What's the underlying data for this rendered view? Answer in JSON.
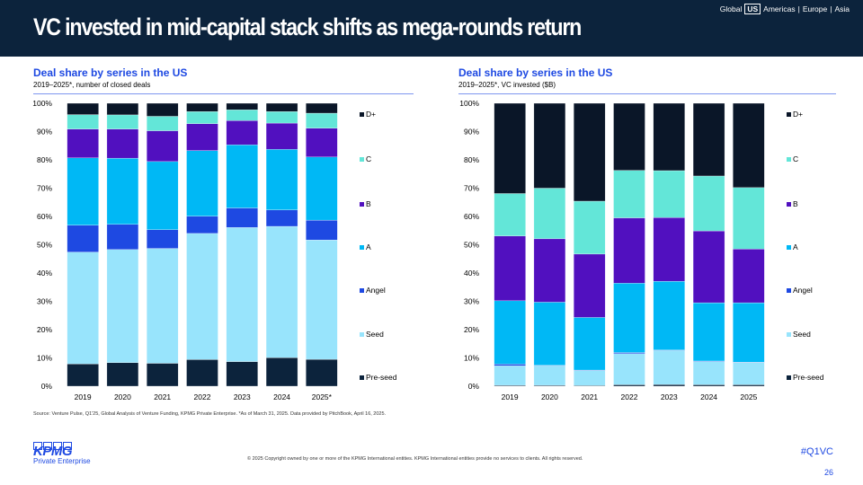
{
  "header": {
    "title": "VC invested in mid-capital stack shifts as mega-rounds return",
    "regions": [
      "Global",
      "US",
      "Americas",
      "Europe",
      "Asia"
    ],
    "selected_region": "US"
  },
  "colors": {
    "Pre-seed": "#0c233c",
    "Seed": "#98e4fc",
    "Angel": "#1e49e2",
    "A": "#00b8f5",
    "B": "#5110bf",
    "C": "#63e6d8",
    "D+": "#0a1628"
  },
  "chart_data": [
    {
      "type": "bar",
      "stacked": true,
      "title": "Deal share by series in the US",
      "subtitle": "2019–2025*, number of closed deals",
      "categories": [
        "2019",
        "2020",
        "2021",
        "2022",
        "2023",
        "2024",
        "2025*"
      ],
      "ylim": [
        0,
        100
      ],
      "yticks": [
        "0%",
        "10%",
        "20%",
        "30%",
        "40%",
        "50%",
        "60%",
        "70%",
        "80%",
        "90%",
        "100%"
      ],
      "legend": "right",
      "series": [
        {
          "name": "Pre-seed",
          "values": [
            7.9,
            8.3,
            8.1,
            9.4,
            8.7,
            10.1,
            9.5
          ]
        },
        {
          "name": "Seed",
          "values": [
            39.5,
            40.0,
            40.6,
            44.6,
            47.4,
            46.4,
            42.2
          ]
        },
        {
          "name": "Angel",
          "values": [
            9.5,
            8.9,
            6.6,
            6.1,
            6.9,
            5.8,
            7.0
          ]
        },
        {
          "name": "A",
          "values": [
            23.8,
            23.4,
            24.1,
            23.2,
            22.3,
            21.4,
            22.3
          ]
        },
        {
          "name": "B",
          "values": [
            10.2,
            10.3,
            10.9,
            9.5,
            8.6,
            9.3,
            10.2
          ]
        },
        {
          "name": "C",
          "values": [
            5.1,
            5.0,
            5.1,
            4.3,
            3.8,
            4.1,
            5.3
          ]
        },
        {
          "name": "D+",
          "values": [
            4.0,
            4.1,
            4.6,
            2.9,
            2.3,
            2.9,
            3.5
          ]
        }
      ]
    },
    {
      "type": "bar",
      "stacked": true,
      "title": "Deal share by series in the US",
      "subtitle": "2019–2025*, VC invested ($B)",
      "categories": [
        "2019",
        "2020",
        "2021",
        "2022",
        "2023",
        "2024",
        "2025"
      ],
      "ylim": [
        0,
        100
      ],
      "yticks": [
        "0%",
        "10%",
        "20%",
        "30%",
        "40%",
        "50%",
        "60%",
        "70%",
        "80%",
        "90%",
        "100%"
      ],
      "legend": "right",
      "series": [
        {
          "name": "Pre-seed",
          "values": [
            0.3,
            0.3,
            0.2,
            0.5,
            0.6,
            0.5,
            0.5
          ]
        },
        {
          "name": "Seed",
          "values": [
            6.9,
            7.0,
            5.4,
            11.0,
            12.0,
            8.3,
            7.9
          ]
        },
        {
          "name": "Angel",
          "values": [
            0.6,
            0.1,
            0.1,
            0.4,
            0.2,
            0.1,
            0.1
          ]
        },
        {
          "name": "A",
          "values": [
            22.4,
            22.3,
            18.6,
            24.5,
            24.3,
            20.6,
            21.0
          ]
        },
        {
          "name": "B",
          "values": [
            22.9,
            22.4,
            22.4,
            23.1,
            22.5,
            25.4,
            19.0
          ]
        },
        {
          "name": "C",
          "values": [
            15.0,
            17.9,
            18.7,
            16.8,
            16.6,
            19.4,
            21.7
          ]
        },
        {
          "name": "D+",
          "values": [
            31.9,
            30.0,
            34.6,
            23.7,
            23.8,
            25.7,
            29.8
          ]
        }
      ]
    }
  ],
  "footer": {
    "source": "Source: Venture Pulse, Q1'25, Global Analysis of Venture Funding, KPMG Private Enterprise. *As of March 31, 2025. Data provided by PitchBook, April 16, 2025.",
    "copyright": "© 2025 Copyright owned by one or more of the KPMG International entities. KPMG International entities provide no services to clients. All rights reserved.",
    "hashtag": "#Q1VC",
    "page": "26",
    "logo": "KPMG",
    "logo_sub": "Private Enterprise"
  }
}
